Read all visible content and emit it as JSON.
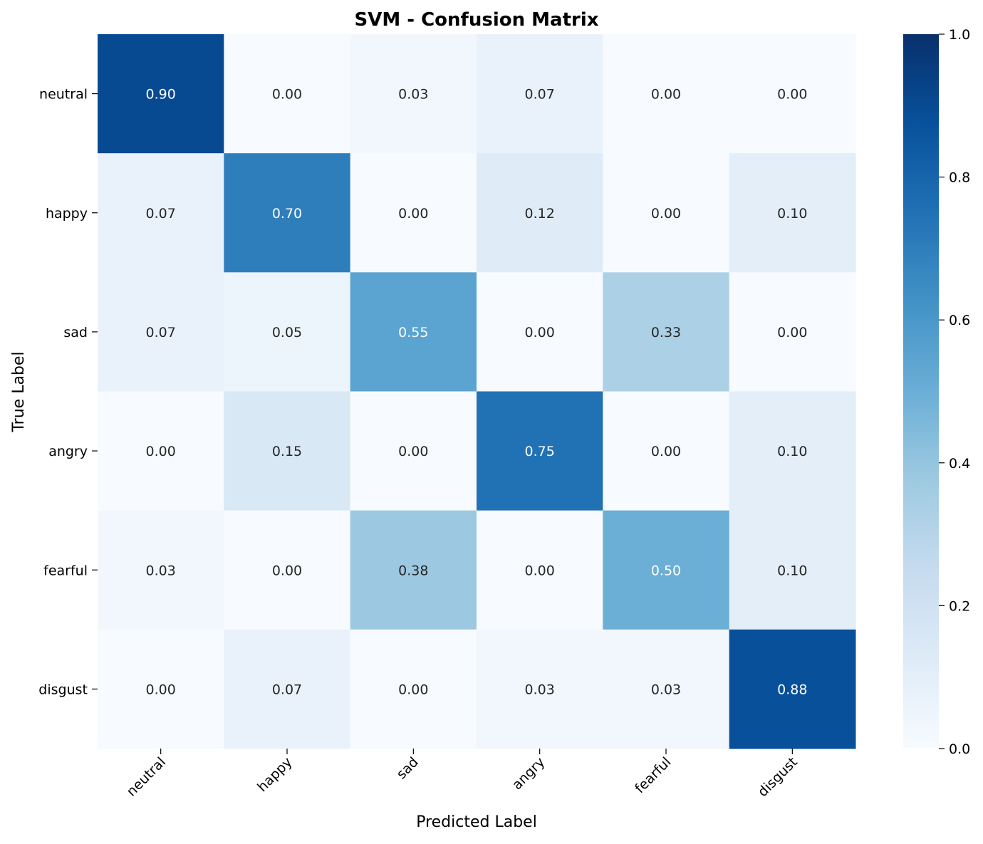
{
  "chart_data": {
    "type": "heatmap",
    "title": "SVM - Confusion Matrix",
    "xlabel": "Predicted Label",
    "ylabel": "True Label",
    "x_categories": [
      "neutral",
      "happy",
      "sad",
      "angry",
      "fearful",
      "disgust"
    ],
    "y_categories": [
      "neutral",
      "happy",
      "sad",
      "angry",
      "fearful",
      "disgust"
    ],
    "values": [
      [
        0.9,
        0.0,
        0.03,
        0.07,
        0.0,
        0.0
      ],
      [
        0.07,
        0.7,
        0.0,
        0.12,
        0.0,
        0.1
      ],
      [
        0.07,
        0.05,
        0.55,
        0.0,
        0.33,
        0.0
      ],
      [
        0.0,
        0.15,
        0.0,
        0.75,
        0.0,
        0.1
      ],
      [
        0.03,
        0.0,
        0.38,
        0.0,
        0.5,
        0.1
      ],
      [
        0.0,
        0.07,
        0.0,
        0.03,
        0.03,
        0.88
      ]
    ],
    "value_format": "0.00",
    "colormap": "Blues",
    "colorbar": {
      "range": [
        0.0,
        1.0
      ],
      "ticks": [
        0.0,
        0.2,
        0.4,
        0.6,
        0.8,
        1.0
      ],
      "tick_labels": [
        "0.0",
        "0.2",
        "0.4",
        "0.6",
        "0.8",
        "1.0"
      ]
    },
    "grid": false,
    "colors": {
      "low": "#f7fbff",
      "high": "#08306b",
      "text_dark": "#262626",
      "text_light": "#ffffff"
    }
  }
}
